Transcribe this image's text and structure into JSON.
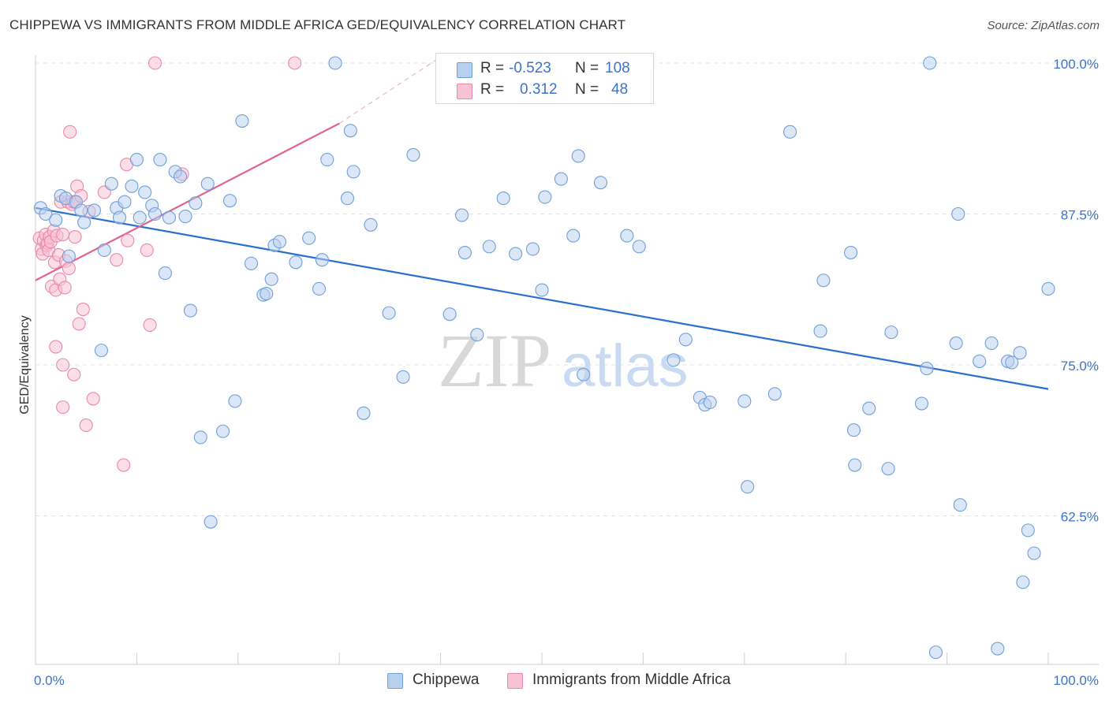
{
  "title": "CHIPPEWA VS IMMIGRANTS FROM MIDDLE AFRICA GED/EQUIVALENCY CORRELATION CHART",
  "source": "Source: ZipAtlas.com",
  "watermark": {
    "zip": "ZIP",
    "atlas": "atlas"
  },
  "colors": {
    "blue_fill": "#b8d0f0",
    "blue_stroke": "#6f9fd8",
    "blue_line": "#2a6fcc",
    "pink_fill": "#f7c3d4",
    "pink_stroke": "#e889aa",
    "pink_line": "#e06490",
    "tick_text": "#3d73c9",
    "grid": "#e3e3e3"
  },
  "legend": {
    "r_label": "R =",
    "n_label": "N =",
    "blue": {
      "r": "-0.523",
      "n": "108"
    },
    "pink": {
      "r": "0.312",
      "n": "48"
    }
  },
  "chart_data": {
    "type": "scatter",
    "ylabel": "GED/Equivalency",
    "xlabel": "",
    "xlim": [
      0,
      100
    ],
    "ylim": [
      51,
      102
    ],
    "y_ticks": [
      62.5,
      75.0,
      87.5,
      100.0
    ],
    "y_tick_labels": [
      "62.5%",
      "75.0%",
      "87.5%",
      "100.0%"
    ],
    "x_tick_labels": [
      "0.0%",
      "100.0%"
    ],
    "grid": true,
    "legend_position": "bottom",
    "series": [
      {
        "name": "Chippewa",
        "color": "#6f9fd8",
        "trend": {
          "x": [
            0,
            100
          ],
          "y": [
            88.0,
            73.0
          ]
        },
        "points": [
          [
            0.5,
            88
          ],
          [
            1.0,
            87.5
          ],
          [
            2.0,
            87
          ],
          [
            2.5,
            89
          ],
          [
            3.0,
            88.8
          ],
          [
            3.3,
            84
          ],
          [
            4.0,
            88.5
          ],
          [
            4.5,
            87.8
          ],
          [
            4.8,
            86.8
          ],
          [
            5.8,
            87.8
          ],
          [
            6.5,
            76.2
          ],
          [
            6.8,
            84.5
          ],
          [
            7.5,
            90
          ],
          [
            8.0,
            88
          ],
          [
            8.3,
            87.2
          ],
          [
            8.8,
            88.5
          ],
          [
            9.5,
            89.8
          ],
          [
            10.0,
            92
          ],
          [
            10.3,
            87.2
          ],
          [
            10.8,
            89.3
          ],
          [
            11.5,
            88.2
          ],
          [
            11.8,
            87.5
          ],
          [
            12.3,
            92
          ],
          [
            12.8,
            82.6
          ],
          [
            13.2,
            87.2
          ],
          [
            13.8,
            91
          ],
          [
            14.3,
            90.6
          ],
          [
            14.8,
            87.3
          ],
          [
            15.3,
            79.5
          ],
          [
            15.8,
            88.4
          ],
          [
            16.3,
            69
          ],
          [
            17.0,
            90
          ],
          [
            17.3,
            62
          ],
          [
            18.5,
            69.5
          ],
          [
            19.2,
            88.6
          ],
          [
            19.7,
            72
          ],
          [
            20.4,
            95.2
          ],
          [
            21.3,
            83.4
          ],
          [
            22.5,
            80.8
          ],
          [
            22.8,
            80.9
          ],
          [
            23.3,
            82.1
          ],
          [
            23.6,
            84.9
          ],
          [
            24.1,
            85.2
          ],
          [
            25.7,
            83.5
          ],
          [
            27.0,
            85.5
          ],
          [
            28.0,
            81.3
          ],
          [
            28.3,
            83.7
          ],
          [
            28.8,
            92
          ],
          [
            29.6,
            100
          ],
          [
            30.8,
            88.8
          ],
          [
            31.1,
            94.4
          ],
          [
            31.4,
            91
          ],
          [
            32.4,
            71
          ],
          [
            33.1,
            86.6
          ],
          [
            34.9,
            79.3
          ],
          [
            36.3,
            74
          ],
          [
            37.3,
            92.4
          ],
          [
            40.9,
            79.2
          ],
          [
            42.1,
            87.4
          ],
          [
            42.4,
            84.3
          ],
          [
            43.6,
            77.5
          ],
          [
            44.8,
            84.8
          ],
          [
            46.2,
            88.8
          ],
          [
            47.4,
            84.2
          ],
          [
            49.1,
            84.6
          ],
          [
            50.0,
            81.2
          ],
          [
            50.3,
            88.9
          ],
          [
            51.9,
            90.4
          ],
          [
            53.1,
            85.7
          ],
          [
            53.6,
            92.3
          ],
          [
            54.1,
            74.2
          ],
          [
            55.8,
            90.1
          ],
          [
            58.4,
            85.7
          ],
          [
            59.6,
            84.8
          ],
          [
            63.0,
            75.4
          ],
          [
            64.2,
            77.1
          ],
          [
            65.6,
            72.3
          ],
          [
            66.1,
            71.7
          ],
          [
            66.6,
            71.9
          ],
          [
            70.0,
            72
          ],
          [
            70.3,
            64.9
          ],
          [
            73.0,
            72.6
          ],
          [
            74.5,
            94.3
          ],
          [
            77.5,
            77.8
          ],
          [
            77.8,
            82
          ],
          [
            80.5,
            84.3
          ],
          [
            80.8,
            69.6
          ],
          [
            80.9,
            66.7
          ],
          [
            82.3,
            71.4
          ],
          [
            84.2,
            66.4
          ],
          [
            84.5,
            77.7
          ],
          [
            87.5,
            71.8
          ],
          [
            88.0,
            74.7
          ],
          [
            88.3,
            100
          ],
          [
            90.9,
            76.8
          ],
          [
            91.1,
            87.5
          ],
          [
            91.3,
            63.4
          ],
          [
            93.2,
            75.3
          ],
          [
            94.4,
            76.8
          ],
          [
            96.0,
            75.3
          ],
          [
            96.4,
            75.2
          ],
          [
            97.2,
            76
          ],
          [
            97.5,
            57
          ],
          [
            98.0,
            61.3
          ],
          [
            98.6,
            59.4
          ],
          [
            100.0,
            81.3
          ],
          [
            95.0,
            51.5
          ],
          [
            88.9,
            51.2
          ]
        ]
      },
      {
        "name": "Immigrants from Middle Africa",
        "color": "#e889aa",
        "trend": {
          "x": [
            0,
            30
          ],
          "y": [
            82.0,
            95.0
          ],
          "dashed_to": {
            "x": 40,
            "y": 100.5
          }
        },
        "points": [
          [
            0.4,
            85.5
          ],
          [
            0.6,
            84.6
          ],
          [
            0.7,
            84.2
          ],
          [
            0.8,
            85.3
          ],
          [
            1.0,
            85.8
          ],
          [
            1.1,
            84.9
          ],
          [
            1.2,
            85.1
          ],
          [
            1.3,
            84.5
          ],
          [
            1.4,
            85.6
          ],
          [
            1.5,
            85.2
          ],
          [
            1.6,
            81.5
          ],
          [
            1.8,
            86.1
          ],
          [
            1.9,
            83.5
          ],
          [
            2.0,
            81.2
          ],
          [
            2.0,
            76.5
          ],
          [
            2.1,
            85.7
          ],
          [
            2.3,
            84.1
          ],
          [
            2.4,
            82.1
          ],
          [
            2.5,
            88.5
          ],
          [
            2.7,
            85.8
          ],
          [
            2.7,
            75
          ],
          [
            2.7,
            71.5
          ],
          [
            2.9,
            81.4
          ],
          [
            3.0,
            83.6
          ],
          [
            3.2,
            88.5
          ],
          [
            3.3,
            83
          ],
          [
            3.4,
            94.3
          ],
          [
            3.6,
            88.3
          ],
          [
            3.8,
            74.2
          ],
          [
            3.8,
            88.5
          ],
          [
            3.9,
            85.6
          ],
          [
            4.1,
            89.8
          ],
          [
            4.3,
            78.4
          ],
          [
            4.5,
            89
          ],
          [
            4.7,
            79.6
          ],
          [
            5.0,
            70
          ],
          [
            5.3,
            87.7
          ],
          [
            5.7,
            72.2
          ],
          [
            6.8,
            89.3
          ],
          [
            8.0,
            83.7
          ],
          [
            8.7,
            66.7
          ],
          [
            9.0,
            91.6
          ],
          [
            9.1,
            85.3
          ],
          [
            11.0,
            84.5
          ],
          [
            11.3,
            78.3
          ],
          [
            14.5,
            90.8
          ],
          [
            11.8,
            100
          ],
          [
            25.6,
            100
          ]
        ]
      }
    ]
  }
}
